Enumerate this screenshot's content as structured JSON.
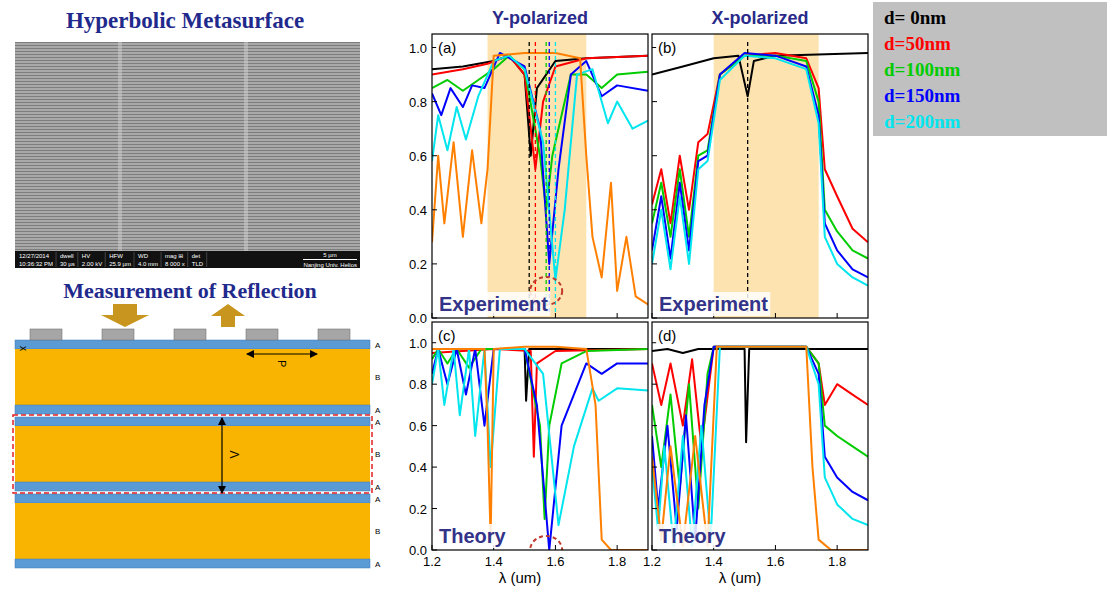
{
  "chart_data": [
    {
      "type": "line",
      "title": "Y-polarized",
      "panel_label": "(a)",
      "annotation": "Experiment",
      "xlim": [
        1.2,
        1.9
      ],
      "ylim": [
        0,
        1.05
      ],
      "xticks": [
        1.2,
        1.4,
        1.6,
        1.8
      ],
      "yticks": [
        {
          "value": 0,
          "label": "0.0"
        },
        0.2,
        0.4,
        0.6,
        0.8,
        {
          "value": 1,
          "label": "1.0"
        }
      ],
      "tick_labels": "y",
      "legend": "outside-right",
      "highlight_range": [
        1.38,
        1.7
      ],
      "vlines": [
        {
          "x": 1.515,
          "color": "#000000"
        },
        {
          "x": 1.535,
          "color": "#ff0000"
        },
        {
          "x": 1.57,
          "color": "#00cc00"
        },
        {
          "x": 1.58,
          "color": "#0000ff"
        },
        {
          "x": 1.6,
          "color": "#00e5ee"
        }
      ],
      "circle": {
        "x": 1.57,
        "y": 0.1
      },
      "series": [
        {
          "name": "d= 0nm",
          "color": "#000000",
          "x": [
            1.2,
            1.3,
            1.4,
            1.45,
            1.5,
            1.52,
            1.54,
            1.6,
            1.7,
            1.9
          ],
          "values": [
            0.92,
            0.93,
            0.95,
            0.97,
            0.9,
            0.6,
            0.85,
            0.95,
            0.96,
            0.97
          ]
        },
        {
          "name": "d=50nm",
          "color": "#ff0000",
          "x": [
            1.2,
            1.3,
            1.38,
            1.45,
            1.5,
            1.535,
            1.56,
            1.6,
            1.7,
            1.9
          ],
          "values": [
            0.9,
            0.92,
            0.94,
            0.97,
            0.9,
            0.55,
            0.8,
            0.93,
            0.96,
            0.97
          ]
        },
        {
          "name": "d=100nm",
          "color": "#00cc00",
          "x": [
            1.2,
            1.25,
            1.3,
            1.35,
            1.4,
            1.45,
            1.5,
            1.55,
            1.57,
            1.59,
            1.65,
            1.7,
            1.75,
            1.8,
            1.9
          ],
          "values": [
            0.85,
            0.88,
            0.84,
            0.88,
            0.92,
            0.97,
            0.92,
            0.6,
            0.4,
            0.6,
            0.9,
            0.9,
            0.85,
            0.9,
            0.91
          ]
        },
        {
          "name": "d=150nm",
          "color": "#0000ff",
          "x": [
            1.2,
            1.23,
            1.26,
            1.3,
            1.33,
            1.37,
            1.42,
            1.5,
            1.55,
            1.58,
            1.61,
            1.65,
            1.7,
            1.75,
            1.8,
            1.9
          ],
          "values": [
            0.83,
            0.75,
            0.85,
            0.78,
            0.86,
            0.85,
            0.98,
            0.93,
            0.7,
            0.2,
            0.55,
            0.9,
            0.95,
            0.82,
            0.86,
            0.84
          ]
        },
        {
          "name": "d=200nm",
          "color": "#00e5ee",
          "x": [
            1.2,
            1.22,
            1.25,
            1.28,
            1.31,
            1.35,
            1.4,
            1.45,
            1.5,
            1.56,
            1.6,
            1.63,
            1.67,
            1.72,
            1.77,
            1.8,
            1.85,
            1.9
          ],
          "values": [
            0.58,
            0.75,
            0.62,
            0.78,
            0.66,
            0.82,
            0.95,
            0.97,
            0.92,
            0.65,
            0.14,
            0.4,
            0.9,
            0.92,
            0.72,
            0.8,
            0.7,
            0.73
          ]
        },
        {
          "name": null,
          "color": "#ff8000",
          "x": [
            1.2,
            1.22,
            1.24,
            1.27,
            1.3,
            1.33,
            1.36,
            1.38,
            1.4,
            1.5,
            1.6,
            1.68,
            1.7,
            1.72,
            1.75,
            1.78,
            1.8,
            1.83,
            1.86,
            1.9
          ],
          "values": [
            0.28,
            0.6,
            0.35,
            0.65,
            0.3,
            0.62,
            0.35,
            0.55,
            0.97,
            0.98,
            0.98,
            0.96,
            0.6,
            0.3,
            0.15,
            0.5,
            0.1,
            0.3,
            0.08,
            0.05
          ]
        }
      ]
    },
    {
      "type": "line",
      "title": "X-polarized",
      "panel_label": "(b)",
      "annotation": "Experiment",
      "xlim": [
        1.2,
        1.9
      ],
      "ylim": [
        0,
        1.05
      ],
      "xticks": [
        1.2,
        1.4,
        1.6,
        1.8
      ],
      "yticks": [
        {
          "value": 0,
          "label": "0.0"
        },
        0.2,
        0.4,
        0.6,
        0.8,
        {
          "value": 1,
          "label": "1.0"
        }
      ],
      "tick_labels": false,
      "highlight_range": [
        1.4,
        1.74
      ],
      "vlines": [
        {
          "x": 1.51,
          "color": "#000000"
        }
      ],
      "series": [
        {
          "color": "#000000",
          "x": [
            1.2,
            1.3,
            1.4,
            1.48,
            1.51,
            1.53,
            1.6,
            1.9
          ],
          "values": [
            0.9,
            0.93,
            0.96,
            0.97,
            0.82,
            0.95,
            0.97,
            0.98
          ]
        },
        {
          "color": "#ff0000",
          "x": [
            1.2,
            1.23,
            1.26,
            1.29,
            1.32,
            1.35,
            1.38,
            1.42,
            1.5,
            1.6,
            1.7,
            1.74,
            1.76,
            1.8,
            1.85,
            1.9
          ],
          "values": [
            0.42,
            0.55,
            0.35,
            0.6,
            0.4,
            0.65,
            0.68,
            0.9,
            0.97,
            0.98,
            0.96,
            0.85,
            0.55,
            0.45,
            0.33,
            0.28
          ]
        },
        {
          "color": "#00cc00",
          "x": [
            1.2,
            1.23,
            1.26,
            1.29,
            1.32,
            1.35,
            1.38,
            1.42,
            1.5,
            1.6,
            1.7,
            1.74,
            1.76,
            1.8,
            1.85,
            1.9
          ],
          "values": [
            0.35,
            0.5,
            0.3,
            0.55,
            0.3,
            0.6,
            0.62,
            0.9,
            0.97,
            0.97,
            0.95,
            0.8,
            0.4,
            0.32,
            0.25,
            0.22
          ]
        },
        {
          "color": "#0000ff",
          "x": [
            1.2,
            1.23,
            1.26,
            1.29,
            1.32,
            1.35,
            1.38,
            1.42,
            1.5,
            1.6,
            1.7,
            1.74,
            1.76,
            1.8,
            1.85,
            1.9
          ],
          "values": [
            0.25,
            0.45,
            0.22,
            0.5,
            0.25,
            0.58,
            0.6,
            0.9,
            0.98,
            0.97,
            0.93,
            0.75,
            0.35,
            0.25,
            0.18,
            0.15
          ]
        },
        {
          "color": "#00e5ee",
          "x": [
            1.2,
            1.23,
            1.26,
            1.29,
            1.32,
            1.35,
            1.38,
            1.42,
            1.5,
            1.6,
            1.7,
            1.74,
            1.76,
            1.8,
            1.85,
            1.9
          ],
          "values": [
            0.2,
            0.4,
            0.18,
            0.45,
            0.2,
            0.55,
            0.58,
            0.88,
            0.97,
            0.96,
            0.92,
            0.72,
            0.3,
            0.2,
            0.15,
            0.12
          ]
        }
      ]
    },
    {
      "type": "line",
      "panel_label": "(c)",
      "annotation": "Theory",
      "xlabel": "λ (um)",
      "xlim": [
        1.2,
        1.9
      ],
      "ylim": [
        0,
        1.1
      ],
      "xticks": [
        1.2,
        1.4,
        1.6,
        1.8
      ],
      "yticks": [
        {
          "value": 0,
          "label": "0.0"
        },
        0.2,
        0.4,
        0.6,
        0.8,
        {
          "value": 1,
          "label": "1.0"
        }
      ],
      "tick_labels": true,
      "circle": {
        "x": 1.57,
        "y": 0
      },
      "series": [
        {
          "color": "#000000",
          "x": [
            1.2,
            1.5,
            1.505,
            1.515,
            1.9
          ],
          "values": [
            0.97,
            0.97,
            0.72,
            0.97,
            0.97
          ]
        },
        {
          "color": "#ff0000",
          "x": [
            1.2,
            1.3,
            1.4,
            1.52,
            1.53,
            1.54,
            1.6,
            1.9
          ],
          "values": [
            0.95,
            0.96,
            0.97,
            0.96,
            0.45,
            0.9,
            0.96,
            0.97
          ]
        },
        {
          "color": "#00cc00",
          "x": [
            1.2,
            1.22,
            1.25,
            1.28,
            1.32,
            1.36,
            1.4,
            1.5,
            1.55,
            1.565,
            1.58,
            1.62,
            1.7,
            1.9
          ],
          "values": [
            0.92,
            0.97,
            0.9,
            0.97,
            0.88,
            0.97,
            0.97,
            0.97,
            0.6,
            0.15,
            0.6,
            0.9,
            0.96,
            0.97
          ]
        },
        {
          "color": "#0000ff",
          "x": [
            1.2,
            1.22,
            1.25,
            1.28,
            1.31,
            1.34,
            1.37,
            1.4,
            1.5,
            1.54,
            1.58,
            1.62,
            1.7,
            1.75,
            1.8,
            1.9
          ],
          "values": [
            0.85,
            0.97,
            0.8,
            0.97,
            0.75,
            0.97,
            0.6,
            0.97,
            0.97,
            0.7,
            0.0,
            0.6,
            0.9,
            0.85,
            0.9,
            0.9
          ]
        },
        {
          "color": "#00e5ee",
          "x": [
            1.2,
            1.22,
            1.24,
            1.27,
            1.29,
            1.32,
            1.34,
            1.37,
            1.39,
            1.42,
            1.5,
            1.56,
            1.61,
            1.66,
            1.72,
            1.74,
            1.8,
            1.9
          ],
          "values": [
            0.8,
            0.97,
            0.7,
            0.97,
            0.65,
            0.97,
            0.55,
            0.97,
            0.4,
            0.97,
            0.97,
            0.85,
            0.12,
            0.5,
            0.78,
            0.72,
            0.78,
            0.77
          ]
        },
        {
          "color": "#ff8000",
          "x": [
            1.2,
            1.3,
            1.37,
            1.38,
            1.39,
            1.4,
            1.5,
            1.6,
            1.7,
            1.73,
            1.75,
            1.78,
            1.9
          ],
          "values": [
            0.97,
            0.97,
            0.97,
            0.6,
            0.05,
            0.97,
            0.98,
            0.98,
            0.97,
            0.7,
            0.05,
            0.0,
            0.0
          ]
        }
      ]
    },
    {
      "type": "line",
      "panel_label": "(d)",
      "annotation": "Theory",
      "xlabel": "λ (um)",
      "xlim": [
        1.2,
        1.9
      ],
      "ylim": [
        0,
        1.1
      ],
      "xticks": [
        1.2,
        1.4,
        1.6,
        1.8
      ],
      "yticks": [
        {
          "value": 0,
          "label": "0.0"
        },
        0.2,
        0.4,
        0.6,
        0.8,
        {
          "value": 1,
          "label": "1.0"
        }
      ],
      "tick_labels": "x",
      "series": [
        {
          "color": "#000000",
          "x": [
            1.2,
            1.25,
            1.3,
            1.35,
            1.5,
            1.505,
            1.515,
            1.9
          ],
          "values": [
            0.96,
            0.97,
            0.95,
            0.97,
            0.97,
            0.52,
            0.97,
            0.97
          ]
        },
        {
          "color": "#ff0000",
          "x": [
            1.2,
            1.23,
            1.26,
            1.3,
            1.33,
            1.36,
            1.4,
            1.7,
            1.74,
            1.76,
            1.8,
            1.85,
            1.9
          ],
          "values": [
            0.9,
            0.7,
            0.9,
            0.6,
            0.92,
            0.5,
            0.98,
            0.98,
            0.9,
            0.7,
            0.8,
            0.75,
            0.7
          ]
        },
        {
          "color": "#00cc00",
          "x": [
            1.2,
            1.23,
            1.26,
            1.29,
            1.32,
            1.35,
            1.38,
            1.4,
            1.7,
            1.74,
            1.76,
            1.8,
            1.85,
            1.9
          ],
          "values": [
            0.7,
            0.4,
            0.75,
            0.3,
            0.8,
            0.2,
            0.85,
            0.98,
            0.98,
            0.9,
            0.6,
            0.55,
            0.5,
            0.45
          ]
        },
        {
          "color": "#0000ff",
          "x": [
            1.2,
            1.22,
            1.25,
            1.28,
            1.31,
            1.34,
            1.37,
            1.4,
            1.7,
            1.74,
            1.76,
            1.8,
            1.85,
            1.9
          ],
          "values": [
            0.55,
            0.2,
            0.6,
            0.1,
            0.65,
            0.05,
            0.7,
            0.98,
            0.98,
            0.85,
            0.45,
            0.35,
            0.28,
            0.24
          ]
        },
        {
          "color": "#00e5ee",
          "x": [
            1.2,
            1.22,
            1.24,
            1.27,
            1.3,
            1.33,
            1.36,
            1.39,
            1.42,
            1.7,
            1.74,
            1.76,
            1.8,
            1.85,
            1.9
          ],
          "values": [
            0.4,
            0.1,
            0.5,
            0.02,
            0.55,
            0.02,
            0.6,
            0.05,
            0.98,
            0.98,
            0.8,
            0.35,
            0.22,
            0.15,
            0.12
          ]
        },
        {
          "color": "#ff8000",
          "x": [
            1.2,
            1.23,
            1.26,
            1.3,
            1.34,
            1.38,
            1.41,
            1.7,
            1.72,
            1.74,
            1.78,
            1.9
          ],
          "values": [
            0.45,
            0.05,
            0.5,
            0.02,
            0.55,
            0.02,
            0.98,
            0.98,
            0.4,
            0.05,
            0.0,
            0.0
          ]
        }
      ]
    }
  ],
  "left_panel": {
    "title": "Hyperbolic Metasurface",
    "sem_info": [
      {
        "head": "12/27/2014",
        "value": "10:36:32 PM"
      },
      {
        "head": "dwell",
        "value": "30 µs"
      },
      {
        "head": "HV",
        "value": "2.00 kV"
      },
      {
        "head": "HFW",
        "value": "25.9 µm"
      },
      {
        "head": "WD",
        "value": "4.0 mm"
      },
      {
        "head": "mag ⊞",
        "value": "8 000 x"
      },
      {
        "head": "det",
        "value": "TLD"
      }
    ],
    "scale_bar": "5 µm",
    "footer": "Nanjing Univ. Helios",
    "subtitle": "Measurement of Reflection",
    "schematic": {
      "layer_labels": [
        "A",
        "B",
        "A",
        "A",
        "B",
        "A",
        "A",
        "B",
        "A"
      ],
      "period_label": "P",
      "lattice_label": "Λ",
      "axis_label": "x"
    }
  }
}
